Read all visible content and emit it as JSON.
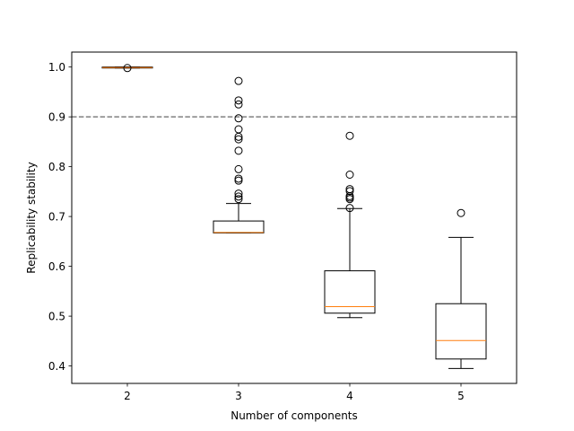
{
  "chart_data": {
    "type": "boxplot",
    "xlabel": "Number of components",
    "ylabel": "Replicability stability",
    "ylim": [
      0.365,
      1.03
    ],
    "xlim": [
      0.5,
      4.5
    ],
    "yticks": [
      0.4,
      0.5,
      0.6,
      0.7,
      0.8,
      0.9,
      1.0
    ],
    "ytick_labels": [
      "0.4",
      "0.5",
      "0.6",
      "0.7",
      "0.8",
      "0.9",
      "1.0"
    ],
    "reference_line": {
      "y": 0.9,
      "style": "dashed",
      "color": "#808080"
    },
    "colors": {
      "box": "#000000",
      "median": "#ff7f0e",
      "outlier": "#000000"
    },
    "grid": false,
    "boxes": [
      {
        "label": "2",
        "whisker_low": 0.998,
        "q1": 0.998,
        "median": 0.999,
        "q3": 1.0,
        "whisker_high": 1.0,
        "outliers": [
          0.998
        ]
      },
      {
        "label": "3",
        "whisker_low": 0.667,
        "q1": 0.667,
        "median": 0.668,
        "q3": 0.691,
        "whisker_high": 0.726,
        "outliers": [
          0.735,
          0.74,
          0.746,
          0.772,
          0.776,
          0.795,
          0.832,
          0.855,
          0.86,
          0.875,
          0.897,
          0.925,
          0.933,
          0.972
        ]
      },
      {
        "label": "4",
        "whisker_low": 0.497,
        "q1": 0.506,
        "median": 0.519,
        "q3": 0.591,
        "whisker_high": 0.716,
        "outliers": [
          0.717,
          0.735,
          0.738,
          0.741,
          0.751,
          0.755,
          0.784,
          0.862
        ]
      },
      {
        "label": "5",
        "whisker_low": 0.395,
        "q1": 0.414,
        "median": 0.451,
        "q3": 0.525,
        "whisker_high": 0.658,
        "outliers": [
          0.707
        ]
      }
    ]
  }
}
